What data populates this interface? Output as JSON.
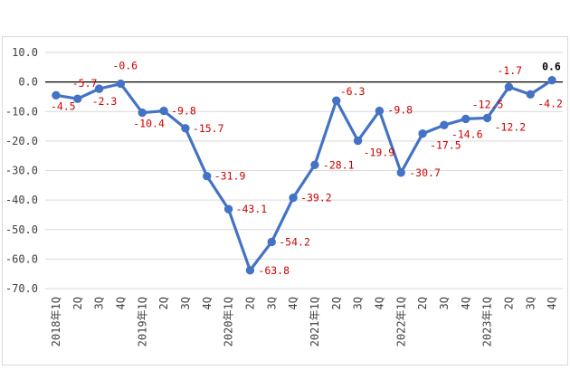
{
  "chart_data": {
    "type": "line",
    "title": "",
    "xlabel": "",
    "ylabel": "",
    "ylim": [
      -70,
      10
    ],
    "yticks": [
      "10.0",
      "0.0",
      "-10.0",
      "-20.0",
      "-30.0",
      "-40.0",
      "-50.0",
      "-60.0",
      "-70.0"
    ],
    "categories": [
      "2018年1Q",
      "2Q",
      "3Q",
      "4Q",
      "2019年1Q",
      "2Q",
      "3Q",
      "4Q",
      "2020年1Q",
      "2Q",
      "3Q",
      "4Q",
      "2021年1Q",
      "2Q",
      "3Q",
      "4Q",
      "2022年1Q",
      "2Q",
      "3Q",
      "4Q",
      "2023年1Q",
      "2Q",
      "3Q",
      "4Q"
    ],
    "series": [
      {
        "color": "#4472c4",
        "values": [
          -4.5,
          -5.7,
          -2.3,
          -0.6,
          -10.4,
          -9.8,
          -15.7,
          -31.9,
          -43.1,
          -63.8,
          -54.2,
          -39.2,
          -28.1,
          -6.3,
          -19.9,
          -9.8,
          -30.7,
          -17.5,
          -14.6,
          -12.5,
          -12.2,
          -1.7,
          -4.2,
          0.6
        ],
        "labels": [
          "-4.5",
          "-5.7",
          "-2.3",
          "-0.6",
          "-10.4",
          "-9.8",
          "-15.7",
          "-31.9",
          "-43.1",
          "-63.8",
          "-54.2",
          "-39.2",
          "-28.1",
          "-6.3",
          "-19.9",
          "-9.8",
          "-30.7",
          "-17.5",
          "-14.6",
          "-12.5",
          "-12.2",
          "-1.7",
          "-4.2",
          "0.6"
        ]
      }
    ],
    "label_color": "#cc0000",
    "last_label_color": "#000000",
    "grid": true
  }
}
